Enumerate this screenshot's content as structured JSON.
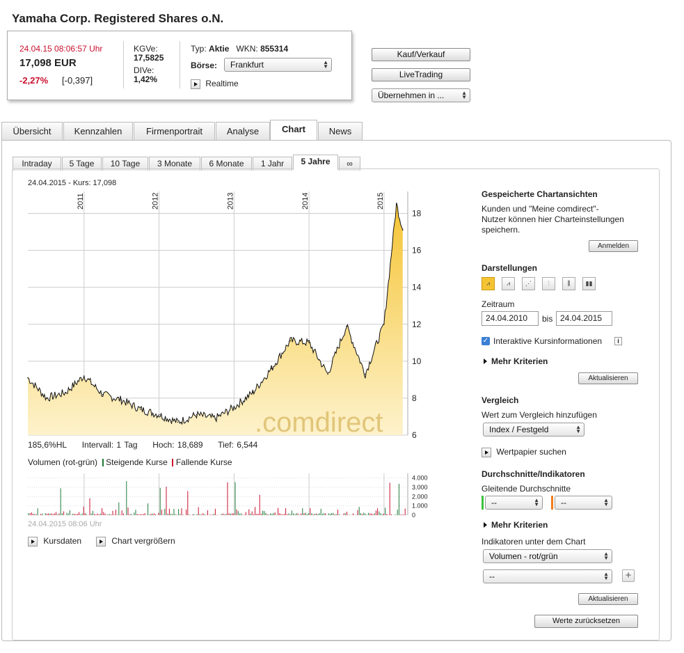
{
  "title": "Yamaha Corp. Registered Shares o.N.",
  "quote": {
    "datetime": "24.04.15  08:06:57 Uhr",
    "price": "17,098 EUR",
    "change_pct": "-2,27%",
    "change_abs": "[-0,397]",
    "kgve_label": "KGVe:",
    "kgve_value": "17,5825",
    "dive_label": "DIVe:",
    "dive_value": "1,42%",
    "typ_label": "Typ:",
    "typ_value": "Aktie",
    "wkn_label": "WKN:",
    "wkn_value": "855314",
    "boerse_label": "Börse:",
    "boerse_value": "Frankfurt",
    "realtime_label": "Realtime"
  },
  "actions": {
    "kauf": "Kauf/Verkauf",
    "livetrading": "LiveTrading",
    "uebernehmen": "Übernehmen in ..."
  },
  "tabs": [
    "Übersicht",
    "Kennzahlen",
    "Firmenportrait",
    "Analyse",
    "Chart",
    "News"
  ],
  "subtabs": [
    "Intraday",
    "5 Tage",
    "10 Tage",
    "3 Monate",
    "6 Monate",
    "1 Jahr",
    "5 Jahre",
    "∞"
  ],
  "chart": {
    "header": "24.04.2015  - Kurs: 17,098",
    "watermark": ".comdirect",
    "stats": {
      "hl": "185,6%HL",
      "intervall": "Intervall: 1 Tag",
      "hoch": "Hoch:  18,689",
      "tief": "Tief:  6,544"
    },
    "volume_label": "Volumen (rot-grün)",
    "rising_label": "Steigende Kurse",
    "falling_label": "Fallende Kurse",
    "volume_timestamp": "24.04.2015 08:06 Uhr",
    "kursdaten": "Kursdaten",
    "vergroessern": "Chart vergrößern"
  },
  "chart_data": {
    "type": "area",
    "x_tick_labels": [
      "2011",
      "2012",
      "2013",
      "2014",
      "2015"
    ],
    "y_tick_labels": [
      "6",
      "8",
      "10",
      "12",
      "14",
      "16",
      "18"
    ],
    "ylim": [
      6,
      19
    ],
    "x": [
      "2010-04",
      "2010-07",
      "2010-10",
      "2011-01",
      "2011-04",
      "2011-07",
      "2011-10",
      "2012-01",
      "2012-04",
      "2012-07",
      "2012-10",
      "2013-01",
      "2013-04",
      "2013-07",
      "2013-10",
      "2014-01",
      "2014-04",
      "2014-07",
      "2014-10",
      "2015-01",
      "2015-03",
      "2015-04"
    ],
    "values": [
      9.1,
      8.0,
      8.3,
      9.2,
      8.2,
      7.9,
      7.4,
      7.1,
      6.7,
      7.1,
      6.9,
      7.5,
      8.3,
      9.6,
      11.1,
      11.0,
      9.3,
      11.9,
      9.3,
      12.0,
      18.5,
      17.1
    ],
    "volume": {
      "y_tick_labels": [
        "0",
        "1.000",
        "2.000",
        "3.000",
        "4.000"
      ],
      "ylim": [
        0,
        4500
      ]
    },
    "colors": {
      "fill_top": "#f5c433",
      "fill_bottom": "#fdf2cc",
      "line": "#111111",
      "rising": "#1f7a3a",
      "falling": "#c8102e"
    }
  },
  "side": {
    "saved_title": "Gespeicherte Chartansichten",
    "saved_text1": "Kunden und \"Meine comdirect\"-",
    "saved_text2": "Nutzer können hier Charteinstellungen",
    "saved_text3": "speichern.",
    "anmelden": "Anmelden",
    "darstellungen": "Darstellungen",
    "zeitraum": "Zeitraum",
    "from": "24.04.2010",
    "bis": "bis",
    "to": "24.04.2015",
    "interaktiv": "Interaktive Kursinformationen",
    "mehr1": "Mehr Kriterien",
    "aktualisieren1": "Aktualisieren",
    "vergleich": "Vergleich",
    "vergleich_text": "Wert zum Vergleich hinzufügen",
    "index_select": "Index / Festgeld",
    "wertpapier": "Wertpapier suchen",
    "durchschnitte": "Durchschnitte/Indikatoren",
    "gleitende": "Gleitende Durchschnitte",
    "gd1": "--",
    "gd2": "--",
    "mehr2": "Mehr Kriterien",
    "indikatoren": "Indikatoren unter dem Chart",
    "volumen_select": "Volumen - rot/grün",
    "ind2_select": "--",
    "aktualisieren2": "Aktualisieren",
    "zuruecksetzen": "Werte zurücksetzen"
  }
}
